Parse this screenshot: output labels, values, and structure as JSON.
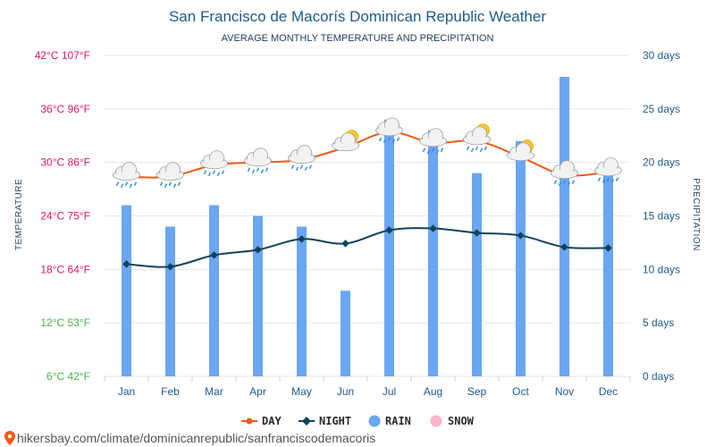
{
  "chart_data": {
    "type": "bar+line",
    "title": "San Francisco de Macorís Dominican Republic Weather",
    "subtitle": "AVERAGE MONTHLY TEMPERATURE AND PRECIPITATION",
    "categories": [
      "Jan",
      "Feb",
      "Mar",
      "Apr",
      "May",
      "Jun",
      "Jul",
      "Aug",
      "Sep",
      "Oct",
      "Nov",
      "Dec"
    ],
    "series": [
      {
        "name": "DAY",
        "type": "line",
        "color": "#f05a14",
        "values": [
          28.4,
          28.4,
          29.7,
          30.0,
          30.3,
          31.7,
          33.4,
          32.2,
          32.4,
          30.6,
          28.6,
          28.9
        ]
      },
      {
        "name": "NIGHT",
        "type": "line",
        "color": "#12425a",
        "values": [
          18.6,
          18.3,
          19.6,
          20.2,
          21.4,
          20.9,
          22.4,
          22.6,
          22.1,
          21.8,
          20.5,
          20.4
        ]
      },
      {
        "name": "RAIN",
        "type": "bar",
        "unit": "days",
        "color": "#6aa6f2",
        "values": [
          16,
          14,
          16,
          15,
          14,
          8,
          24,
          23,
          19,
          22,
          28,
          19
        ]
      },
      {
        "name": "SNOW",
        "type": "bar",
        "unit": "days",
        "color": "#f7b6c8",
        "values": [
          0,
          0,
          0,
          0,
          0,
          0,
          0,
          0,
          0,
          0,
          0,
          0
        ]
      }
    ],
    "left_axis": {
      "label": "TEMPERATURE",
      "ylim": [
        6,
        42
      ],
      "ticks": [
        {
          "value": 42,
          "label": "42°C 107°F",
          "color": "#e0186b"
        },
        {
          "value": 36,
          "label": "36°C 96°F",
          "color": "#e0186b"
        },
        {
          "value": 30,
          "label": "30°C 86°F",
          "color": "#e0186b"
        },
        {
          "value": 24,
          "label": "24°C 75°F",
          "color": "#e0186b"
        },
        {
          "value": 18,
          "label": "18°C 64°F",
          "color": "#e0186b"
        },
        {
          "value": 12,
          "label": "12°C 53°F",
          "color": "#46b446"
        },
        {
          "value": 6,
          "label": "6°C 42°F",
          "color": "#46b446"
        }
      ]
    },
    "right_axis": {
      "label": "PRECIPITATION",
      "ylim": [
        0,
        30
      ],
      "ticks": [
        {
          "value": 30,
          "label": "30 days"
        },
        {
          "value": 25,
          "label": "25 days"
        },
        {
          "value": 20,
          "label": "20 days"
        },
        {
          "value": 15,
          "label": "15 days"
        },
        {
          "value": 10,
          "label": "10 days"
        },
        {
          "value": 5,
          "label": "5 days"
        },
        {
          "value": 0,
          "label": "0 days"
        }
      ]
    },
    "weather_icons": [
      "rain-cloud-icon",
      "rain-cloud-icon",
      "rain-cloud-icon",
      "rain-cloud-icon",
      "rain-cloud-icon",
      "sun-cloud-icon",
      "rain-cloud-icon",
      "rain-cloud-icon",
      "sun-rain-cloud-icon",
      "sun-cloud-icon",
      "rain-cloud-icon",
      "rain-cloud-icon"
    ],
    "grid": true,
    "legend_position": "bottom"
  },
  "footer": {
    "icon": "map-pin-icon",
    "url": "hikersbay.com/climate/dominicanrepublic/sanfranciscodemacoris"
  }
}
